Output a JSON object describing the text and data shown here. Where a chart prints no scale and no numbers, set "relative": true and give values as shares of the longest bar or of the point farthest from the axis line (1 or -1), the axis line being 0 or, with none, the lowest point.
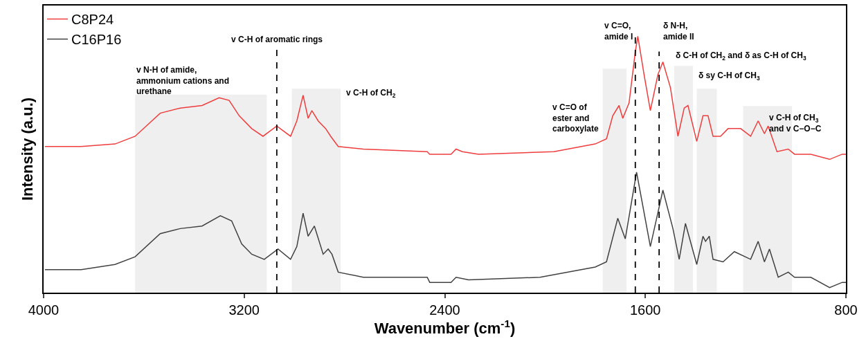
{
  "chart_data": {
    "type": "line",
    "relative": true,
    "xlabel": "Wavenumber (cm$^{-1}$)",
    "ylabel": "Intensity (a.u.)",
    "xlim": [
      4000,
      800
    ],
    "xticks": [
      4000,
      3200,
      2400,
      1600,
      800
    ],
    "legend": "top left",
    "grid": false,
    "marker": "none",
    "line_style": "solid",
    "series": [
      {
        "name": "C8P24",
        "color": "#f03c3c",
        "x": [
          3995,
          3850,
          3715,
          3635,
          3535,
          3455,
          3368,
          3300,
          3260,
          3220,
          3170,
          3125,
          3070,
          3015,
          2990,
          2965,
          2945,
          2930,
          2905,
          2875,
          2855,
          2825,
          2725,
          2470,
          2460,
          2375,
          2355,
          2330,
          2265,
          1965,
          1800,
          1755,
          1730,
          1705,
          1690,
          1665,
          1640,
          1630,
          1605,
          1580,
          1550,
          1530,
          1500,
          1470,
          1445,
          1430,
          1395,
          1370,
          1350,
          1330,
          1300,
          1270,
          1220,
          1180,
          1150,
          1125,
          1110,
          1075,
          1030,
          1005,
          940,
          865,
          815,
          800
        ],
        "values": [
          0.57,
          0.57,
          0.58,
          0.61,
          0.7,
          0.72,
          0.73,
          0.76,
          0.75,
          0.69,
          0.64,
          0.61,
          0.65,
          0.61,
          0.67,
          0.77,
          0.68,
          0.71,
          0.67,
          0.64,
          0.61,
          0.57,
          0.56,
          0.55,
          0.54,
          0.54,
          0.56,
          0.55,
          0.54,
          0.55,
          0.58,
          0.6,
          0.69,
          0.73,
          0.68,
          0.74,
          0.94,
          1.0,
          0.85,
          0.71,
          0.85,
          0.9,
          0.8,
          0.61,
          0.72,
          0.73,
          0.59,
          0.69,
          0.69,
          0.61,
          0.61,
          0.64,
          0.64,
          0.61,
          0.67,
          0.62,
          0.65,
          0.55,
          0.56,
          0.54,
          0.54,
          0.52,
          0.54,
          0.54
        ]
      },
      {
        "name": "C16P16",
        "color": "#404040",
        "x": [
          3995,
          3850,
          3715,
          3635,
          3535,
          3455,
          3368,
          3295,
          3250,
          3210,
          3170,
          3120,
          3065,
          3015,
          2990,
          2965,
          2945,
          2920,
          2885,
          2865,
          2850,
          2825,
          2725,
          2470,
          2460,
          2375,
          2355,
          2305,
          2020,
          1800,
          1755,
          1710,
          1680,
          1635,
          1580,
          1530,
          1490,
          1465,
          1440,
          1395,
          1370,
          1360,
          1345,
          1330,
          1290,
          1245,
          1180,
          1150,
          1125,
          1105,
          1070,
          1030,
          1005,
          940,
          865,
          815,
          800
        ],
        "values": [
          0.09,
          0.09,
          0.11,
          0.14,
          0.23,
          0.25,
          0.26,
          0.3,
          0.28,
          0.19,
          0.15,
          0.13,
          0.17,
          0.13,
          0.18,
          0.31,
          0.22,
          0.26,
          0.15,
          0.17,
          0.15,
          0.08,
          0.06,
          0.06,
          0.04,
          0.04,
          0.06,
          0.05,
          0.06,
          0.1,
          0.12,
          0.29,
          0.21,
          0.47,
          0.18,
          0.4,
          0.25,
          0.13,
          0.27,
          0.11,
          0.22,
          0.2,
          0.22,
          0.13,
          0.12,
          0.16,
          0.13,
          0.2,
          0.12,
          0.17,
          0.06,
          0.08,
          0.06,
          0.06,
          0.02,
          0.04,
          0.04
        ]
      }
    ],
    "ref_lines": [
      {
        "axis": "x",
        "value": 3070,
        "label": "v C-H of aromatic rings",
        "color": "#000000",
        "line_style": "dashed"
      },
      {
        "axis": "x",
        "value": 1640,
        "label": "v C=O,\namide I",
        "color": "#000000",
        "line_style": "dashed"
      },
      {
        "axis": "x",
        "value": 1545,
        "label": "δ N-H,\namide II",
        "color": "#000000",
        "line_style": "dashed"
      }
    ],
    "bands": [
      {
        "axis": "x",
        "from": 3635,
        "to": 3110,
        "label": "v N-H of amide,\nammonium cations and\nurethane",
        "color": "#efefef"
      },
      {
        "axis": "x",
        "from": 3010,
        "to": 2815,
        "label": "v C-H of CH$_{2}$",
        "color": "#efefef"
      },
      {
        "axis": "x",
        "from": 1770,
        "to": 1675,
        "label": "v C=O of\nester and\ncarboxylate",
        "color": "#efefef"
      },
      {
        "axis": "x",
        "from": 1485,
        "to": 1410,
        "label": "δ C-H of CH$_{2}$ and δ as C-H of CH$_{3}$",
        "color": "#efefef"
      },
      {
        "axis": "x",
        "from": 1395,
        "to": 1315,
        "label": "δ sy C-H of CH$_{3}$",
        "color": "#efefef"
      },
      {
        "axis": "x",
        "from": 1210,
        "to": 1015,
        "label": "v C-H of CH$_{3}$\nand v C−O−C",
        "color": "#efefef"
      }
    ]
  }
}
